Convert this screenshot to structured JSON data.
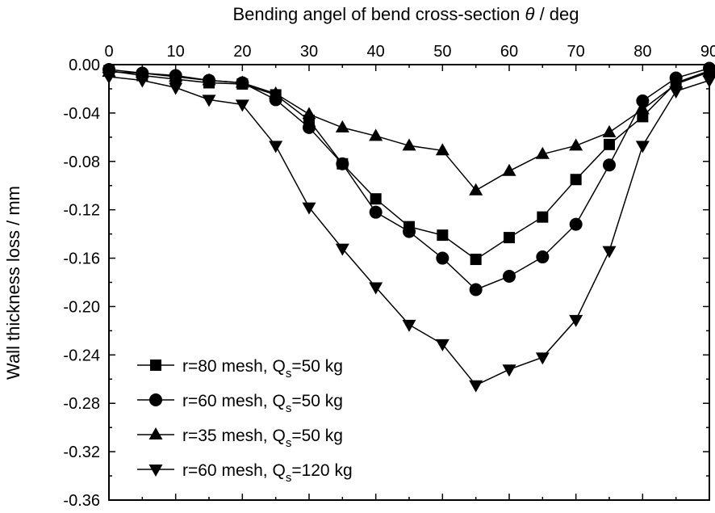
{
  "chart_data": {
    "type": "line",
    "xlabel": "Bending angel of bend cross-section θ / deg",
    "xlabel_parts": [
      "Bending angel of bend cross-section ",
      "θ",
      " / deg"
    ],
    "ylabel": "Wall thickness loss / mm",
    "xlim": [
      0,
      90
    ],
    "ylim": [
      -0.36,
      0.0
    ],
    "x_axis_position": "top",
    "grid": false,
    "legend_position": "bottom-left",
    "x_ticks": [
      "0",
      "10",
      "20",
      "30",
      "40",
      "50",
      "60",
      "70",
      "80",
      "90"
    ],
    "y_ticks": [
      "0.00",
      "-0.04",
      "-0.08",
      "-0.12",
      "-0.16",
      "-0.20",
      "-0.24",
      "-0.28",
      "-0.32",
      "-0.36"
    ],
    "x": [
      0,
      5,
      10,
      15,
      20,
      25,
      30,
      35,
      40,
      45,
      50,
      55,
      60,
      65,
      70,
      75,
      80,
      85,
      90
    ],
    "series": [
      {
        "name": "r=80 mesh, Qs=50 kg",
        "label_parts": [
          "r=80 mesh, Q",
          "s",
          "=50 kg"
        ],
        "marker": "square",
        "values": [
          -0.005,
          -0.009,
          -0.012,
          -0.015,
          -0.016,
          -0.025,
          -0.046,
          -0.082,
          -0.111,
          -0.134,
          -0.141,
          -0.161,
          -0.143,
          -0.126,
          -0.095,
          -0.066,
          -0.043,
          -0.015,
          -0.005
        ]
      },
      {
        "name": "r=60 mesh, Qs=50 kg",
        "label_parts": [
          "r=60 mesh, Q",
          "s",
          "=50 kg"
        ],
        "marker": "circle",
        "values": [
          -0.004,
          -0.007,
          -0.009,
          -0.013,
          -0.015,
          -0.029,
          -0.052,
          -0.082,
          -0.122,
          -0.138,
          -0.16,
          -0.186,
          -0.175,
          -0.159,
          -0.132,
          -0.083,
          -0.03,
          -0.011,
          -0.003
        ]
      },
      {
        "name": "r=35 mesh, Qs=50 kg",
        "label_parts": [
          "r=35 mesh, Q",
          "s",
          "=50 kg"
        ],
        "marker": "triangle-up",
        "values": [
          -0.006,
          -0.007,
          -0.01,
          -0.013,
          -0.015,
          -0.024,
          -0.041,
          -0.052,
          -0.059,
          -0.067,
          -0.071,
          -0.104,
          -0.088,
          -0.074,
          -0.067,
          -0.056,
          -0.037,
          -0.016,
          -0.006
        ]
      },
      {
        "name": "r=60 mesh, Qs=120 kg",
        "label_parts": [
          "r=60 mesh, Q",
          "s",
          "=120 kg"
        ],
        "marker": "triangle-down",
        "values": [
          -0.01,
          -0.013,
          -0.019,
          -0.029,
          -0.033,
          -0.067,
          -0.118,
          -0.152,
          -0.184,
          -0.215,
          -0.231,
          -0.265,
          -0.252,
          -0.242,
          -0.211,
          -0.154,
          -0.067,
          -0.022,
          -0.013
        ]
      }
    ]
  }
}
